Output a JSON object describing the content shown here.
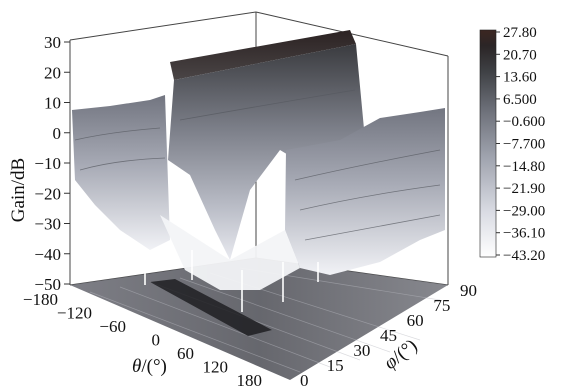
{
  "chart_data": {
    "type": "surface3d",
    "title": "",
    "zlabel": "Gain/dB",
    "xlabel_symbol": "θ",
    "xlabel_unit": "/(°)",
    "ylabel_symbol": "φ",
    "ylabel_unit": "/(°)",
    "z_ticks": [
      "30",
      "20",
      "10",
      "0",
      "−10",
      "−20",
      "−30",
      "−40",
      "−50"
    ],
    "x_ticks": [
      "−180",
      "−120",
      "−60",
      "0",
      "60",
      "120",
      "180"
    ],
    "y_ticks": [
      "0",
      "15",
      "30",
      "45",
      "60",
      "75",
      "90"
    ],
    "zlim": [
      -50,
      30
    ],
    "xlim": [
      -180,
      180
    ],
    "ylim": [
      0,
      90
    ],
    "colorbar": {
      "labels": [
        "27.80",
        "20.70",
        "13.60",
        "6.500",
        "−0.600",
        "−7.700",
        "−14.80",
        "−21.90",
        "−29.00",
        "−36.10",
        "−43.20"
      ],
      "range": [
        -43.2,
        27.8
      ],
      "colors": [
        "#ffffff",
        "#e4e5ec",
        "#c5c8d2",
        "#a6aab5",
        "#878b96",
        "#6a6d76",
        "#4d4f55",
        "#323336",
        "#2a2222",
        "#3a2722"
      ]
    },
    "surface_summary": {
      "main_beam_theta_range": [
        -30,
        30
      ],
      "main_beam_peak_gain_db": 27.8,
      "sidelobe_level_db": [
        -10,
        10
      ],
      "null_floor_db": -43.2
    }
  }
}
